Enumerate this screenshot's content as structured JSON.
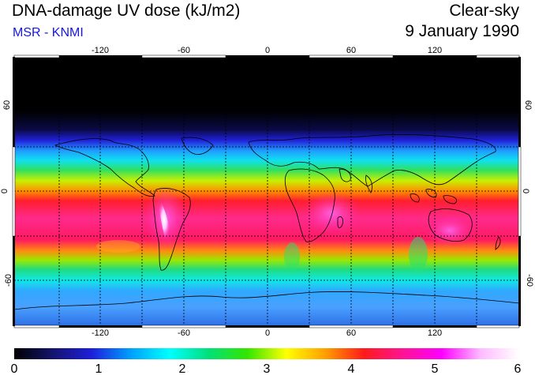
{
  "header": {
    "title": "DNA-damage UV dose (kJ/m2)",
    "subtitle": "MSR - KNMI",
    "condition": "Clear-sky",
    "date": "9 January 1990"
  },
  "map": {
    "longitude_ticks": [
      "-120",
      "-60",
      "0",
      "60",
      "120"
    ],
    "latitude_ticks": [
      "60",
      "0",
      "-60"
    ],
    "grid_line_color": "#000000",
    "coastline_color": "#000000"
  },
  "colorbar": {
    "labels": [
      "0",
      "1",
      "2",
      "3",
      "4",
      "5",
      "6"
    ],
    "min": 0,
    "max": 6,
    "stops": [
      "#000000",
      "#14146e",
      "#1e1edc",
      "#00a0ff",
      "#00ffff",
      "#00e07a",
      "#32e600",
      "#ffff00",
      "#ffa000",
      "#ff1a1a",
      "#ff1493",
      "#ff00ff",
      "#ffbaff",
      "#ffffff"
    ]
  }
}
